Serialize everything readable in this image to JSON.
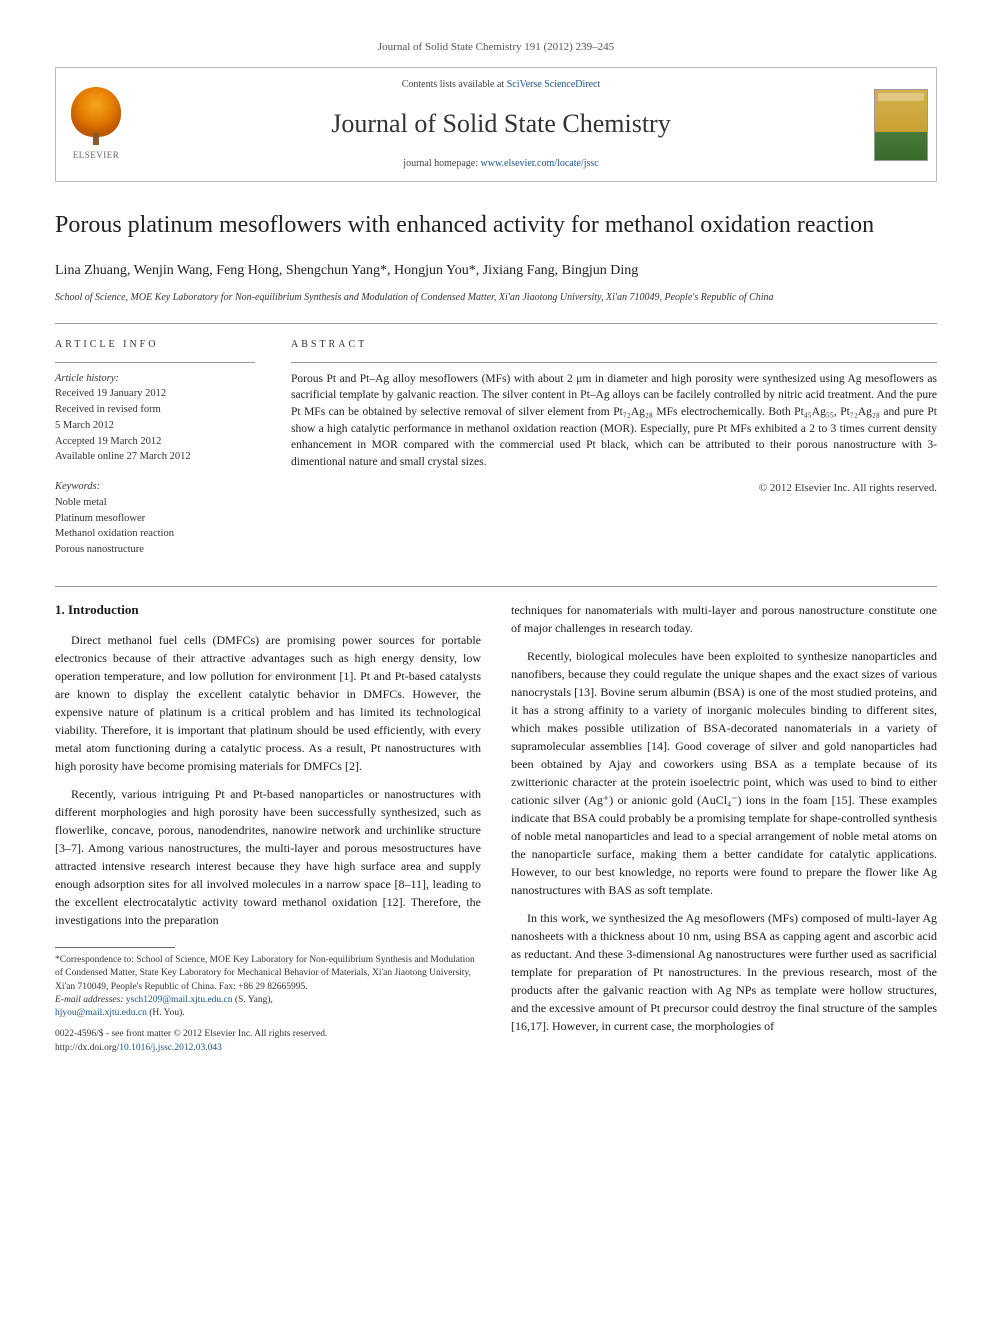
{
  "journal_ref": "Journal of Solid State Chemistry 191 (2012) 239–245",
  "header": {
    "contents_prefix": "Contents lists available at ",
    "contents_link": "SciVerse ScienceDirect",
    "journal_name": "Journal of Solid State Chemistry",
    "homepage_prefix": "journal homepage: ",
    "homepage_link": "www.elsevier.com/locate/jssc",
    "elsevier_label": "ELSEVIER"
  },
  "title": "Porous platinum mesoflowers with enhanced activity for methanol oxidation reaction",
  "authors": "Lina Zhuang, Wenjin Wang, Feng Hong, Shengchun Yang*, Hongjun You*, Jixiang Fang, Bingjun Ding",
  "affiliation": "School of Science, MOE Key Laboratory for Non-equilibrium Synthesis and Modulation of Condensed Matter, Xi'an Jiaotong University, Xi'an 710049, People's Republic of China",
  "article_info": {
    "header": "article info",
    "history_label": "Article history:",
    "received": "Received 19 January 2012",
    "revised1": "Received in revised form",
    "revised2": "5 March 2012",
    "accepted": "Accepted 19 March 2012",
    "online": "Available online 27 March 2012",
    "keywords_label": "Keywords:",
    "kw1": "Noble metal",
    "kw2": "Platinum mesoflower",
    "kw3": "Methanol oxidation reaction",
    "kw4": "Porous nanostructure"
  },
  "abstract": {
    "header": "abstract",
    "text": "Porous Pt and Pt–Ag alloy mesoflowers (MFs) with about 2 μm in diameter and high porosity were synthesized using Ag mesoflowers as sacrificial template by galvanic reaction. The silver content in Pt–Ag alloys can be facilely controlled by nitric acid treatment. And the pure Pt MFs can be obtained by selective removal of silver element from Pt₇₂Ag₂₈ MFs electrochemically. Both Pt₄₅Ag₅₅, Pt₇₂Ag₂₈ and pure Pt show a high catalytic performance in methanol oxidation reaction (MOR). Especially, pure Pt MFs exhibited a 2 to 3 times current density enhancement in MOR compared with the commercial used Pt black, which can be attributed to their porous nanostructure with 3-dimentional nature and small crystal sizes.",
    "copyright": "© 2012 Elsevier Inc. All rights reserved."
  },
  "body": {
    "section1_head": "1. Introduction",
    "p1": "Direct methanol fuel cells (DMFCs) are promising power sources for portable electronics because of their attractive advantages such as high energy density, low operation temperature, and low pollution for environment [1]. Pt and Pt-based catalysts are known to display the excellent catalytic behavior in DMFCs. However, the expensive nature of platinum is a critical problem and has limited its technological viability. Therefore, it is important that platinum should be used efficiently, with every metal atom functioning during a catalytic process. As a result, Pt nanostructures with high porosity have become promising materials for DMFCs [2].",
    "p2": "Recently, various intriguing Pt and Pt-based nanoparticles or nanostructures with different morphologies and high porosity have been successfully synthesized, such as flowerlike, concave, porous, nanodendrites, nanowire network and urchinlike structure [3–7]. Among various nanostructures, the multi-layer and porous mesostructures have attracted intensive research interest because they have high surface area and supply enough adsorption sites for all involved molecules in a narrow space [8–11], leading to the excellent electrocatalytic activity toward methanol oxidation [12]. Therefore, the investigations into the preparation",
    "p3": "techniques for nanomaterials with multi-layer and porous nanostructure constitute one of major challenges in research today.",
    "p4": "Recently, biological molecules have been exploited to synthesize nanoparticles and nanofibers, because they could regulate the unique shapes and the exact sizes of various nanocrystals [13]. Bovine serum albumin (BSA) is one of the most studied proteins, and it has a strong affinity to a variety of inorganic molecules binding to different sites, which makes possible utilization of BSA-decorated nanomaterials in a variety of supramolecular assemblies [14]. Good coverage of silver and gold nanoparticles had been obtained by Ajay and coworkers using BSA as a template because of its zwitterionic character at the protein isoelectric point, which was used to bind to either cationic silver (Ag⁺) or anionic gold (AuCl₄⁻) ions in the foam [15]. These examples indicate that BSA could probably be a promising template for shape-controlled synthesis of noble metal nanoparticles and lead to a special arrangement of noble metal atoms on the nanoparticle surface, making them a better candidate for catalytic applications. However, to our best knowledge, no reports were found to prepare the flower like Ag nanostructures with BAS as soft template.",
    "p5": "In this work, we synthesized the Ag mesoflowers (MFs) composed of multi-layer Ag nanosheets with a thickness about 10 nm, using BSA as capping agent and ascorbic acid as reductant. And these 3-dimensional Ag nanostructures were further used as sacrificial template for preparation of Pt nanostructures. In the previous research, most of the products after the galvanic reaction with Ag NPs as template were hollow structures, and the excessive amount of Pt precursor could destroy the final structure of the samples [16,17]. However, in current case, the morphologies of"
  },
  "footnote": {
    "corr": "*Correspondence to: School of Science, MOE Key Laboratory for Non-equilibrium Synthesis and Modulation of Condensed Matter, State Key Laboratory for Mechanical Behavior of Materials, Xi'an Jiaotong University, Xi'an 710049, People's Republic of China. Fax: +86 29 82665995.",
    "email_label": "E-mail addresses: ",
    "email1": "ysch1209@mail.xjtu.edu.cn",
    "email1_name": " (S. Yang),",
    "email2": "hjyou@mail.xjtu.edu.cn",
    "email2_name": " (H. You)."
  },
  "doi": {
    "line1": "0022-4596/$ - see front matter © 2012 Elsevier Inc. All rights reserved.",
    "line2_prefix": "http://dx.doi.org/",
    "line2_link": "10.1016/j.jssc.2012.03.043"
  },
  "colors": {
    "link": "#1a5490",
    "text": "#1a1a1a",
    "border": "#bbbbbb"
  }
}
